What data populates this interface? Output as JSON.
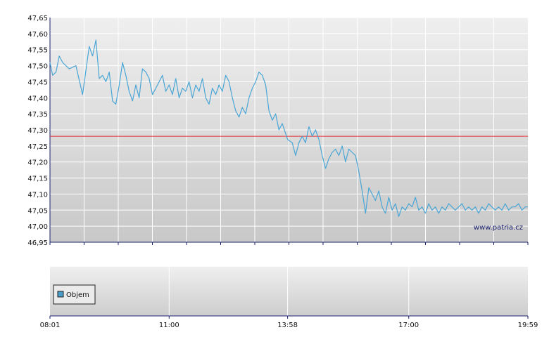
{
  "chart_data": [
    {
      "type": "line",
      "title": "",
      "xlabel": "",
      "ylabel": "",
      "ylim": [
        46.95,
        47.65
      ],
      "y_ticks": [
        "47,65",
        "47,60",
        "47,55",
        "47,50",
        "47,45",
        "47,40",
        "47,35",
        "47,30",
        "47,25",
        "47,20",
        "47,15",
        "47,10",
        "47,05",
        "47,00",
        "46,95"
      ],
      "grid": true,
      "reference_line": {
        "value": 47.28,
        "color": "#e03030"
      },
      "watermark": "www.patria.cz",
      "series": [
        {
          "color": "#4aa6d6",
          "x": [
            "08:01",
            "08:05",
            "08:10",
            "08:15",
            "08:20",
            "08:30",
            "08:40",
            "08:50",
            "09:00",
            "09:05",
            "09:10",
            "09:15",
            "09:20",
            "09:25",
            "09:30",
            "09:35",
            "09:40",
            "09:45",
            "09:50",
            "09:55",
            "10:00",
            "10:05",
            "10:10",
            "10:15",
            "10:20",
            "10:25",
            "10:30",
            "10:35",
            "10:40",
            "10:45",
            "10:50",
            "10:55",
            "11:00",
            "11:05",
            "11:10",
            "11:15",
            "11:20",
            "11:25",
            "11:30",
            "11:35",
            "11:40",
            "11:45",
            "11:50",
            "11:55",
            "12:00",
            "12:05",
            "12:10",
            "12:15",
            "12:20",
            "12:25",
            "12:30",
            "12:35",
            "12:40",
            "12:45",
            "12:50",
            "12:55",
            "13:00",
            "13:05",
            "13:10",
            "13:15",
            "13:20",
            "13:25",
            "13:30",
            "13:35",
            "13:40",
            "13:45",
            "13:50",
            "13:58",
            "14:05",
            "14:10",
            "14:15",
            "14:20",
            "14:25",
            "14:30",
            "14:35",
            "14:40",
            "14:45",
            "14:50",
            "14:55",
            "15:00",
            "15:05",
            "15:10",
            "15:15",
            "15:20",
            "15:25",
            "15:30",
            "15:35",
            "15:40",
            "15:45",
            "15:50",
            "15:55",
            "16:00",
            "16:05",
            "16:10",
            "16:15",
            "16:20",
            "16:25",
            "16:30",
            "16:35",
            "16:40",
            "16:45",
            "16:50",
            "16:55",
            "17:00",
            "17:05",
            "17:10",
            "17:15",
            "17:20",
            "17:25",
            "17:30",
            "17:35",
            "17:40",
            "17:45",
            "17:50",
            "17:55",
            "18:00",
            "18:05",
            "18:10",
            "18:15",
            "18:20",
            "18:25",
            "18:30",
            "18:35",
            "18:40",
            "18:45",
            "18:50",
            "18:55",
            "19:00",
            "19:05",
            "19:10",
            "19:15",
            "19:20",
            "19:25",
            "19:30",
            "19:35",
            "19:40",
            "19:45",
            "19:50",
            "19:55",
            "19:59"
          ],
          "values": [
            47.51,
            47.47,
            47.48,
            47.53,
            47.51,
            47.49,
            47.5,
            47.41,
            47.56,
            47.53,
            47.58,
            47.46,
            47.47,
            47.45,
            47.48,
            47.39,
            47.38,
            47.44,
            47.51,
            47.47,
            47.42,
            47.39,
            47.44,
            47.4,
            47.49,
            47.48,
            47.46,
            47.41,
            47.43,
            47.45,
            47.47,
            47.42,
            47.44,
            47.41,
            47.46,
            47.4,
            47.43,
            47.42,
            47.45,
            47.4,
            47.44,
            47.42,
            47.46,
            47.4,
            47.38,
            47.43,
            47.41,
            47.44,
            47.42,
            47.47,
            47.45,
            47.4,
            47.36,
            47.34,
            47.37,
            47.35,
            47.4,
            47.43,
            47.45,
            47.48,
            47.47,
            47.44,
            47.36,
            47.33,
            47.35,
            47.3,
            47.32,
            47.27,
            47.26,
            47.22,
            47.26,
            47.28,
            47.26,
            47.31,
            47.28,
            47.3,
            47.27,
            47.22,
            47.18,
            47.21,
            47.23,
            47.24,
            47.22,
            47.25,
            47.2,
            47.24,
            47.23,
            47.22,
            47.17,
            47.11,
            47.04,
            47.12,
            47.1,
            47.08,
            47.11,
            47.06,
            47.04,
            47.09,
            47.05,
            47.07,
            47.03,
            47.06,
            47.05,
            47.07,
            47.06,
            47.09,
            47.05,
            47.06,
            47.04,
            47.07,
            47.05,
            47.06,
            47.04,
            47.06,
            47.05,
            47.07,
            47.06,
            47.05,
            47.06,
            47.07,
            47.05,
            47.06,
            47.05,
            47.06,
            47.04,
            47.06,
            47.05,
            47.07,
            47.06,
            47.05,
            47.06,
            47.05,
            47.07,
            47.05,
            47.06,
            47.06,
            47.07,
            47.05,
            47.06,
            47.06
          ]
        }
      ]
    },
    {
      "type": "bar",
      "title": "",
      "x_ticks": [
        "08:01",
        "11:00",
        "13:58",
        "17:00",
        "19:59"
      ],
      "grid": true,
      "legend": {
        "position": "bottom-left",
        "label": "Objem",
        "color": "#4a9cc9"
      },
      "series": []
    }
  ]
}
